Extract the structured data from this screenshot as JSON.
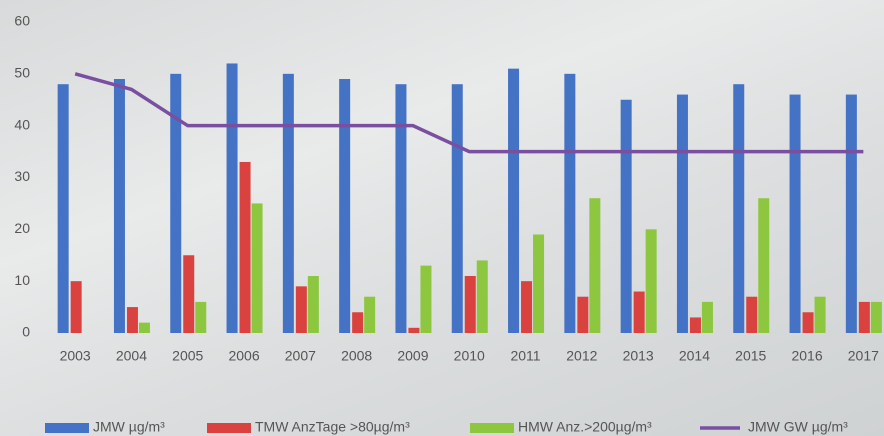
{
  "chart_data": {
    "type": "bar",
    "categories": [
      "2003",
      "2004",
      "2005",
      "2006",
      "2007",
      "2008",
      "2009",
      "2010",
      "2011",
      "2012",
      "2013",
      "2014",
      "2015",
      "2016",
      "2017"
    ],
    "series": [
      {
        "name": "JMW µg/m³",
        "color": "#4472c4",
        "values": [
          48,
          49,
          50,
          52,
          50,
          49,
          48,
          48,
          51,
          50,
          45,
          46,
          48,
          46,
          46
        ]
      },
      {
        "name": "TMW AnzTage >80µg/m³",
        "color": "#d9423e",
        "values": [
          10,
          5,
          15,
          33,
          9,
          4,
          1,
          11,
          10,
          7,
          8,
          3,
          7,
          4,
          6
        ]
      },
      {
        "name": "HMW Anz.>200µg/m³",
        "color": "#8dc63f",
        "values": [
          0,
          2,
          6,
          25,
          11,
          7,
          13,
          14,
          19,
          26,
          20,
          6,
          26,
          7,
          6
        ]
      },
      {
        "name": "JMW GW µg/m³",
        "color": "#7a4fa0",
        "type": "line",
        "values": [
          50,
          47,
          40,
          40,
          40,
          40,
          40,
          35,
          35,
          35,
          35,
          35,
          35,
          35,
          35
        ]
      }
    ],
    "ylim": [
      0,
      60
    ],
    "yticks": [
      0,
      10,
      20,
      30,
      40,
      50,
      60
    ],
    "legend": "bottom"
  }
}
